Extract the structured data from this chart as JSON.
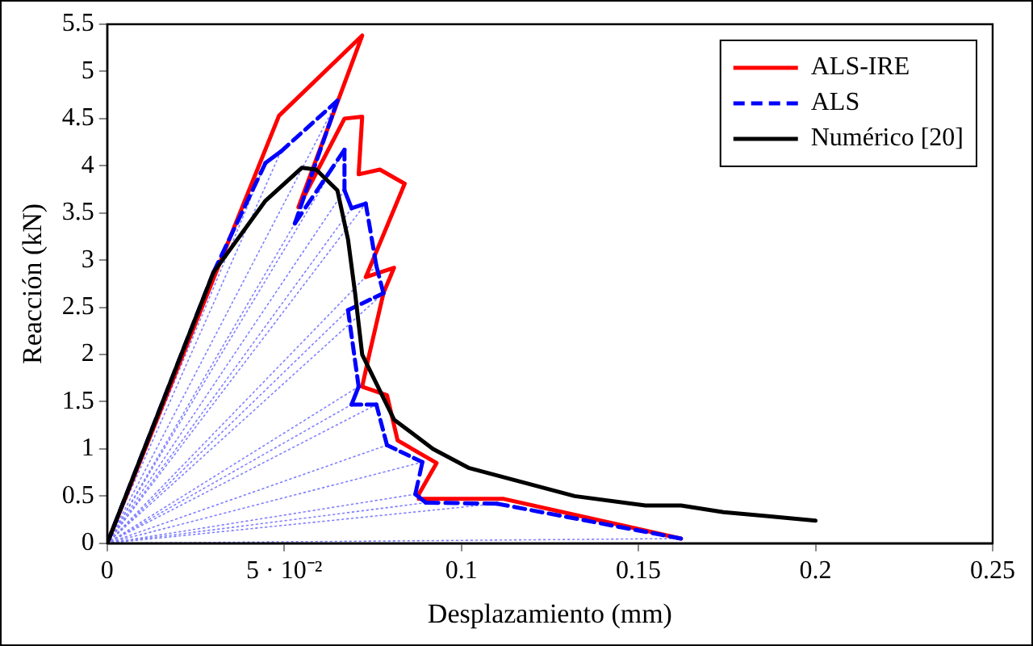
{
  "chart_data": {
    "type": "line",
    "xlabel": "Desplazamiento (mm)",
    "ylabel": "Reacción (kN)",
    "xlim": [
      0,
      0.25
    ],
    "xticks": [
      0,
      {
        "value": 0.05,
        "label": "5 · 10⁻²"
      },
      0.1,
      0.15,
      0.2,
      0.25
    ],
    "ylim": [
      0,
      5.5
    ],
    "yticks": [
      0,
      0.5,
      1,
      1.5,
      2,
      2.5,
      3,
      3.5,
      4,
      4.5,
      5,
      5.5
    ],
    "grid": false,
    "legend": "top right",
    "marker": "none",
    "series": [
      {
        "color": "#8080ff",
        "line_style": "dotted",
        "x": [
          0,
          0.0447
        ],
        "values": [
          0,
          4.03
        ]
      },
      {
        "color": "#8080ff",
        "line_style": "dotted",
        "x": [
          0,
          0.049
        ],
        "values": [
          0,
          4.15
        ]
      },
      {
        "color": "#8080ff",
        "line_style": "dotted",
        "x": [
          0,
          0.065
        ],
        "values": [
          0,
          4.69
        ]
      },
      {
        "color": "#8080ff",
        "line_style": "dotted",
        "x": [
          0,
          0.053
        ],
        "values": [
          0,
          3.39
        ]
      },
      {
        "color": "#8080ff",
        "line_style": "dotted",
        "x": [
          0,
          0.067
        ],
        "values": [
          0,
          4.17
        ]
      },
      {
        "color": "#8080ff",
        "line_style": "dotted",
        "x": [
          0,
          0.067
        ],
        "values": [
          0,
          3.74
        ]
      },
      {
        "color": "#8080ff",
        "line_style": "dotted",
        "x": [
          0,
          0.069
        ],
        "values": [
          0,
          3.55
        ]
      },
      {
        "color": "#8080ff",
        "line_style": "dotted",
        "x": [
          0,
          0.073
        ],
        "values": [
          0,
          3.6
        ]
      },
      {
        "color": "#8080ff",
        "line_style": "dotted",
        "x": [
          0,
          0.076
        ],
        "values": [
          0,
          2.94
        ]
      },
      {
        "color": "#8080ff",
        "line_style": "dotted",
        "x": [
          0,
          0.078
        ],
        "values": [
          0,
          2.65
        ]
      },
      {
        "color": "#8080ff",
        "line_style": "dotted",
        "x": [
          0,
          0.068
        ],
        "values": [
          0,
          2.47
        ]
      },
      {
        "color": "#8080ff",
        "line_style": "dotted",
        "x": [
          0,
          0.071
        ],
        "values": [
          0,
          1.66
        ]
      },
      {
        "color": "#8080ff",
        "line_style": "dotted",
        "x": [
          0,
          0.069
        ],
        "values": [
          0,
          1.47
        ]
      },
      {
        "color": "#8080ff",
        "line_style": "dotted",
        "x": [
          0,
          0.076
        ],
        "values": [
          0,
          1.47
        ]
      },
      {
        "color": "#8080ff",
        "line_style": "dotted",
        "x": [
          0,
          0.079
        ],
        "values": [
          0,
          1.04
        ]
      },
      {
        "color": "#8080ff",
        "line_style": "dotted",
        "x": [
          0,
          0.089
        ],
        "values": [
          0,
          0.86
        ]
      },
      {
        "color": "#8080ff",
        "line_style": "dotted",
        "x": [
          0,
          0.087
        ],
        "values": [
          0,
          0.52
        ]
      },
      {
        "color": "#8080ff",
        "line_style": "dotted",
        "x": [
          0,
          0.09
        ],
        "values": [
          0,
          0.43
        ]
      },
      {
        "color": "#8080ff",
        "line_style": "dotted",
        "x": [
          0,
          0.11
        ],
        "values": [
          0,
          0.42
        ]
      },
      {
        "color": "#8080ff",
        "line_style": "dotted",
        "x": [
          0,
          0.162
        ],
        "values": [
          0,
          0.05
        ]
      },
      {
        "name": "ALS-IRE",
        "color": "#ff0000",
        "line_style": "solid",
        "x": [
          0,
          0.0485,
          0.072,
          0.054,
          0.067,
          0.072,
          0.071,
          0.077,
          0.084,
          0.073,
          0.081,
          0.078,
          0.074,
          0.072,
          0.079,
          0.082,
          0.093,
          0.088,
          0.088,
          0.112,
          0.162
        ],
        "values": [
          0,
          4.53,
          5.38,
          3.56,
          4.5,
          4.52,
          3.91,
          3.96,
          3.81,
          2.82,
          2.92,
          2.65,
          2.0,
          1.66,
          1.57,
          1.09,
          0.85,
          0.52,
          0.47,
          0.47,
          0.05
        ]
      },
      {
        "name": "ALS",
        "color": "#0000ff",
        "line_style": "dashed",
        "x": [
          0,
          0.03,
          0.0447,
          0.049,
          0.065,
          0.053,
          0.067,
          0.067,
          0.069,
          0.073,
          0.076,
          0.078,
          0.068,
          0.071,
          0.069,
          0.076,
          0.079,
          0.089,
          0.087,
          0.09,
          0.11,
          0.162
        ],
        "values": [
          0,
          2.87,
          4.03,
          4.15,
          4.69,
          3.39,
          4.17,
          3.74,
          3.55,
          3.6,
          2.94,
          2.65,
          2.47,
          1.66,
          1.47,
          1.47,
          1.04,
          0.86,
          0.52,
          0.43,
          0.42,
          0.05
        ]
      },
      {
        "name": "Numérico [20]",
        "color": "#000000",
        "line_style": "solid",
        "x": [
          0,
          0.03,
          0.0447,
          0.055,
          0.059,
          0.065,
          0.068,
          0.07,
          0.072,
          0.081,
          0.092,
          0.102,
          0.132,
          0.152,
          0.162,
          0.174,
          0.186,
          0.2
        ],
        "values": [
          0,
          2.87,
          3.63,
          3.98,
          3.96,
          3.74,
          3.22,
          2.65,
          2.0,
          1.31,
          1.0,
          0.8,
          0.5,
          0.4,
          0.4,
          0.33,
          0.29,
          0.24
        ]
      }
    ]
  }
}
